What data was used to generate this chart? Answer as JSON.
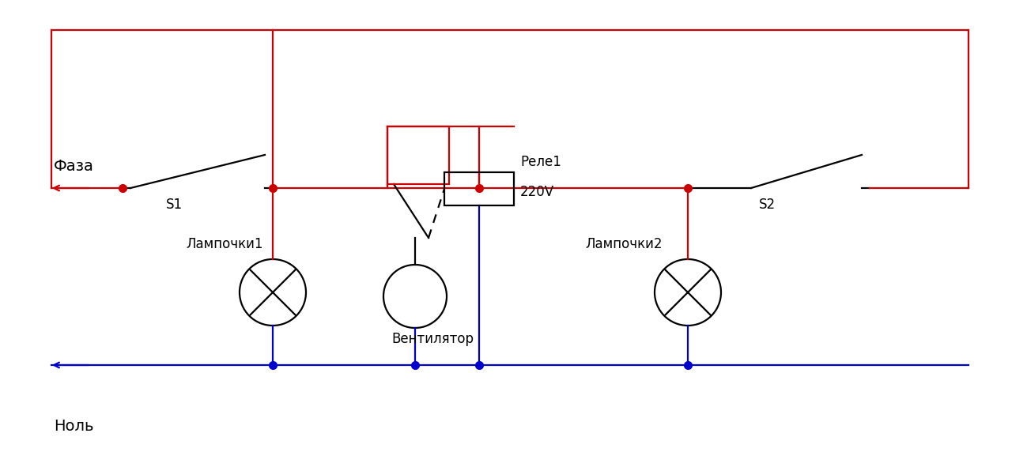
{
  "bg_color": "#ffffff",
  "red": "#cc0000",
  "blue": "#0000cc",
  "black": "#000000",
  "figsize": [
    12.99,
    5.91
  ],
  "dpi": 100,
  "labels": {
    "faza": "Фаза",
    "nol": "Ноль",
    "s1": "S1",
    "s2": "S2",
    "lampochki1": "Лампочки1",
    "lampochki2": "Лампочки2",
    "ventilyator": "Вентилятор",
    "rele1": "Реле1",
    "rele_v": "220V"
  }
}
